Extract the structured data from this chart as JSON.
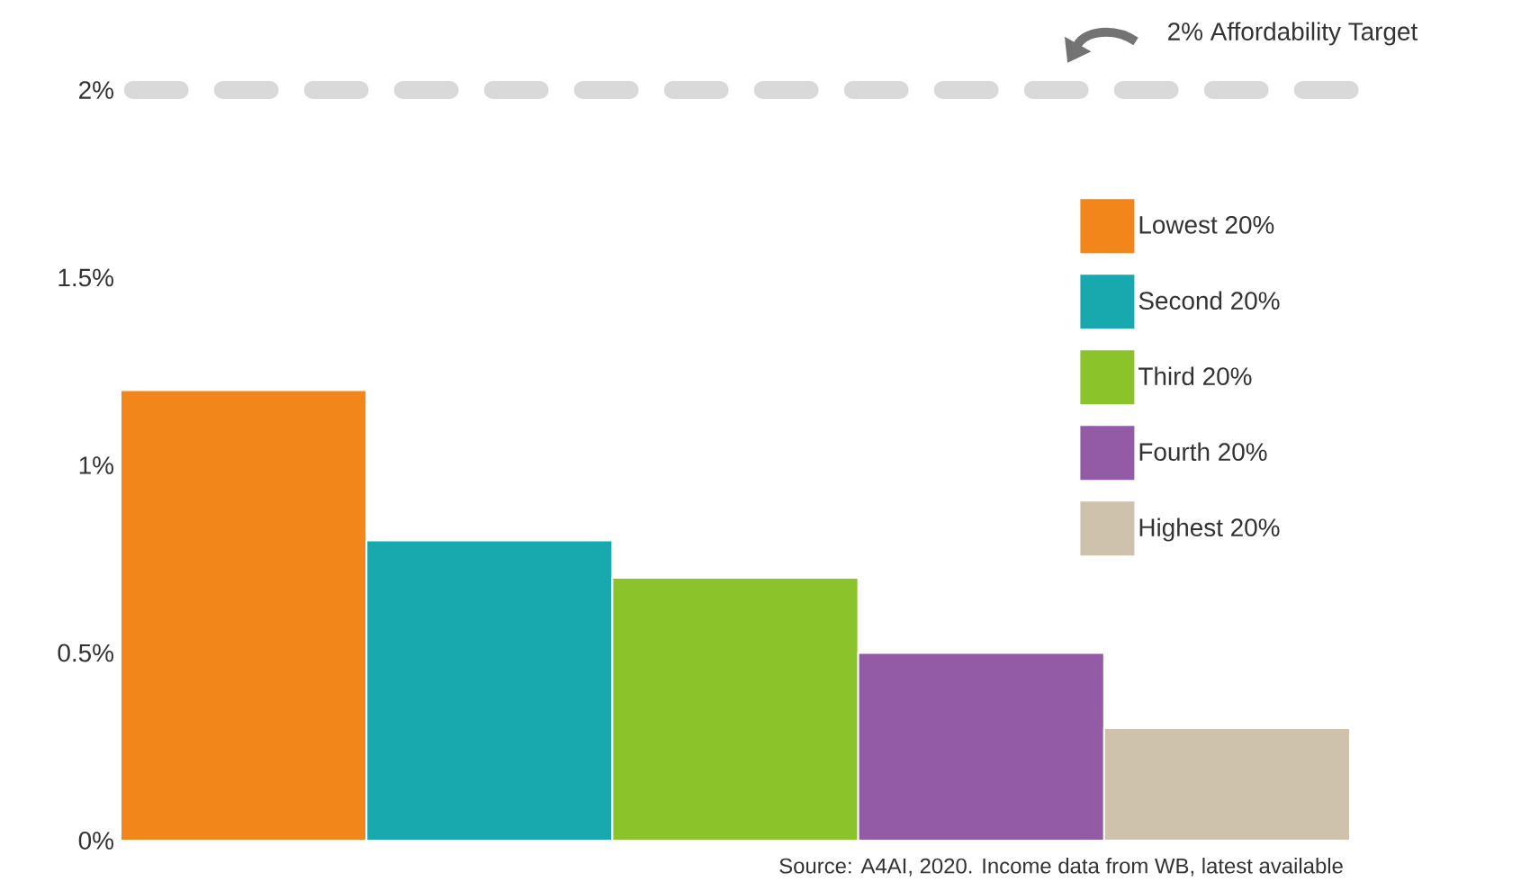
{
  "chart_data": {
    "type": "bar",
    "categories": [
      null,
      null,
      null,
      null,
      null
    ],
    "series": [
      {
        "name": "Lowest 20%",
        "color": "#f3861a",
        "values": [
          1.2,
          null,
          null,
          null,
          null
        ]
      },
      {
        "name": "Second 20%",
        "color": "#17a9ae",
        "values": [
          null,
          0.8,
          null,
          null,
          null
        ]
      },
      {
        "name": "Third 20%",
        "color": "#8bc42a",
        "values": [
          null,
          null,
          0.7,
          null,
          null
        ]
      },
      {
        "name": "Fourth 20%",
        "color": "#935aa5",
        "values": [
          null,
          null,
          null,
          0.5,
          null
        ]
      },
      {
        "name": "Highest 20%",
        "color": "#cfc2ad",
        "values": [
          null,
          null,
          null,
          null,
          0.3
        ]
      }
    ],
    "ylim": [
      0,
      2
    ],
    "yticks": [
      {
        "value": 0,
        "label": "0%"
      },
      {
        "value": 0.5,
        "label": "0.5%"
      },
      {
        "value": 1,
        "label": "1%"
      },
      {
        "value": 1.5,
        "label": "1.5%"
      },
      {
        "value": 2,
        "label": "2%"
      }
    ],
    "tick_labels": "y",
    "legend": "top right",
    "ref_lines": [
      {
        "axis": "y",
        "value": 2,
        "label": "2% Affordability Target",
        "color": "#d9d9d9",
        "line_style": "dashed"
      }
    ],
    "annotations": [
      "Source: A4AI, 2020. Income data from WB, latest available"
    ]
  }
}
